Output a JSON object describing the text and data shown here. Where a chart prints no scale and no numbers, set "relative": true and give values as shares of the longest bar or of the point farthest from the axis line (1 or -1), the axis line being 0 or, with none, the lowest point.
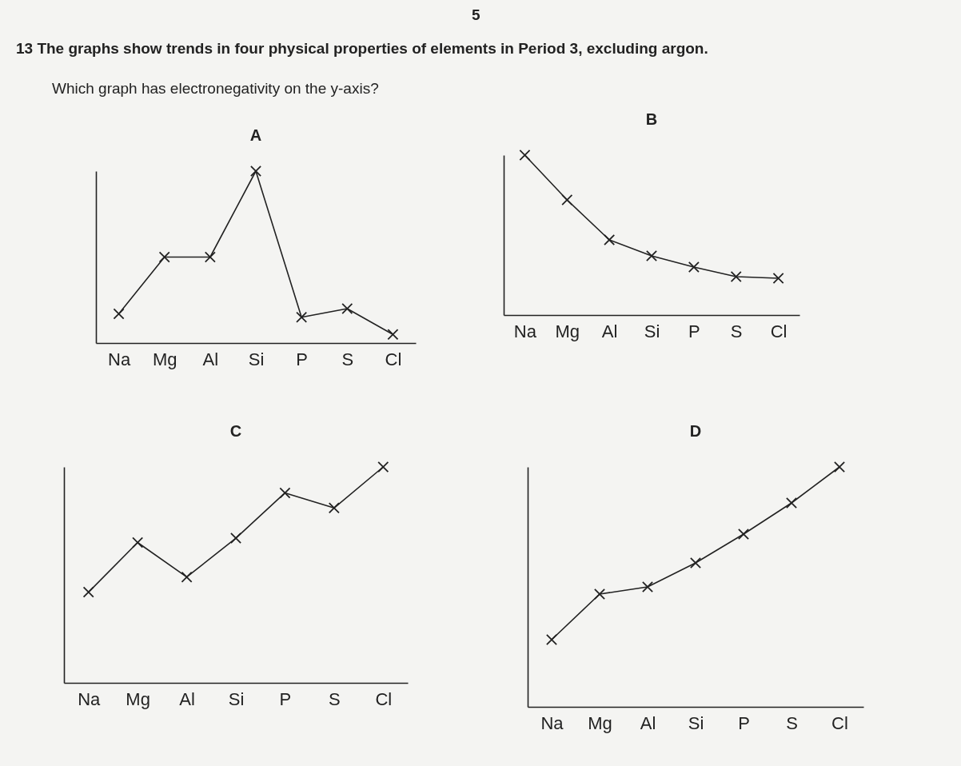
{
  "chart_data": [
    {
      "type": "line",
      "title": "A",
      "annotations": [
        "5",
        "13  The graphs show trends in four physical properties of elements in Period 3, excluding argon.",
        "Which graph has electronegativity on the y-axis?"
      ],
      "categories": [
        "Na",
        "Mg",
        "Al",
        "Si",
        "P",
        "S",
        "Cl"
      ],
      "relative": true,
      "marker": "cross",
      "line_style": "solid",
      "series": [
        {
          "color": "#222222",
          "values": [
            0.17,
            0.5,
            0.5,
            1,
            0.15,
            0.2,
            0.05
          ]
        }
      ]
    },
    {
      "type": "line",
      "title": "B",
      "categories": [
        "Na",
        "Mg",
        "Al",
        "Si",
        "P",
        "S",
        "Cl"
      ],
      "relative": true,
      "marker": "cross",
      "line_style": "solid",
      "series": [
        {
          "color": "#222222",
          "values": [
            1,
            0.72,
            0.47,
            0.37,
            0.3,
            0.24,
            0.23
          ]
        }
      ]
    },
    {
      "type": "line",
      "title": "C",
      "categories": [
        "Na",
        "Mg",
        "Al",
        "Si",
        "P",
        "S",
        "Cl"
      ],
      "relative": true,
      "marker": "cross",
      "line_style": "solid",
      "series": [
        {
          "color": "#222222",
          "values": [
            0.42,
            0.65,
            0.49,
            0.67,
            0.88,
            0.81,
            1
          ]
        }
      ]
    },
    {
      "type": "line",
      "title": "D",
      "categories": [
        "Na",
        "Mg",
        "Al",
        "Si",
        "P",
        "S",
        "Cl"
      ],
      "relative": true,
      "marker": "cross",
      "line_style": "solid",
      "series": [
        {
          "color": "#222222",
          "values": [
            0.28,
            0.47,
            0.5,
            0.6,
            0.72,
            0.85,
            1
          ]
        }
      ]
    }
  ]
}
